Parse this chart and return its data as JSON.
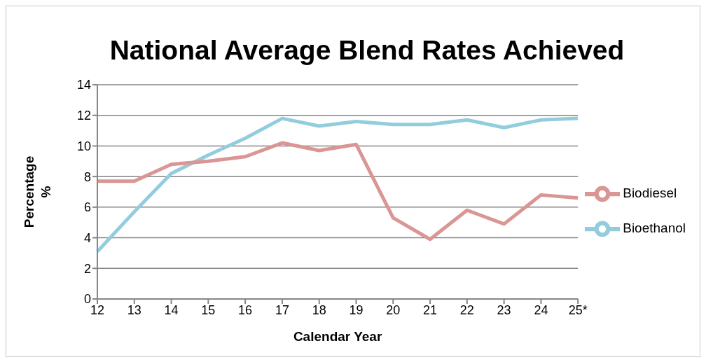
{
  "chart_data": {
    "type": "line",
    "title": "National Average Blend Rates Achieved",
    "xlabel": "Calendar Year",
    "ylabel": "Percentage\n%",
    "categories": [
      "12",
      "13",
      "14",
      "15",
      "16",
      "17",
      "18",
      "19",
      "20",
      "21",
      "22",
      "23",
      "24",
      "25*"
    ],
    "series": [
      {
        "name": "Bioethanol",
        "color": "#93cddd",
        "values": [
          3.1,
          5.7,
          8.2,
          9.4,
          10.5,
          11.8,
          11.3,
          11.6,
          11.4,
          11.4,
          11.7,
          11.2,
          11.7,
          11.8
        ]
      },
      {
        "name": "Biodiesel",
        "color": "#d99694",
        "values": [
          7.7,
          7.7,
          8.8,
          9.0,
          9.3,
          10.2,
          9.7,
          10.1,
          5.3,
          3.9,
          5.8,
          4.9,
          6.8,
          6.6
        ]
      }
    ],
    "ylim": [
      0,
      14
    ],
    "yticks": [
      0,
      2,
      4,
      6,
      8,
      10,
      12,
      14
    ],
    "grid": "y",
    "legend": "right",
    "marker": "none",
    "line_style": "solid"
  }
}
